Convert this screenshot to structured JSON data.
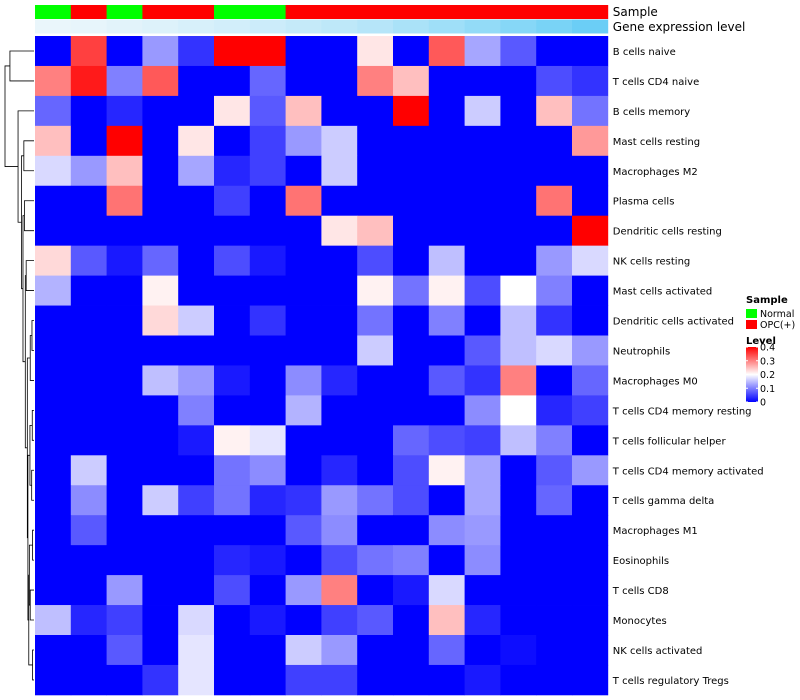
{
  "chart_data": {
    "type": "heatmap",
    "annotation_rows": [
      {
        "label": "Sample"
      },
      {
        "label": "Gene expression level"
      }
    ],
    "row_labels": [
      "B cells naive",
      "T cells CD4 naive",
      "B cells memory",
      "Mast cells resting",
      "Macrophages M2",
      "Plasma cells",
      "Dendritic cells resting",
      "NK cells resting",
      "Mast cells activated",
      "Dendritic cells activated",
      "Neutrophils",
      "Macrophages M0",
      "T cells CD4 memory resting",
      "T cells follicular helper",
      "T cells CD4 memory activated",
      "T cells gamma delta",
      "Macrophages M1",
      "Eosinophils",
      "T cells CD8",
      "Monocytes",
      "NK cells activated",
      "T cells regulatory  Tregs"
    ],
    "sample_groups": [
      "Normal",
      "OPC(+)",
      "Normal",
      "OPC(+)",
      "OPC(+)",
      "Normal",
      "Normal",
      "OPC(+)",
      "OPC(+)",
      "OPC(+)",
      "OPC(+)",
      "OPC(+)",
      "OPC(+)",
      "OPC(+)",
      "OPC(+)",
      "OPC(+)"
    ],
    "expression_level_annotation": [
      0.05,
      0.07,
      0.1,
      0.13,
      0.17,
      0.2,
      0.24,
      0.28,
      0.33,
      0.38,
      0.45,
      0.52,
      0.6,
      0.68,
      0.76,
      0.85
    ],
    "values": [
      [
        0.0,
        0.35,
        0.0,
        0.12,
        0.04,
        0.4,
        0.4,
        0.0,
        0.0,
        0.22,
        0.0,
        0.33,
        0.13,
        0.07,
        0.0,
        0.0
      ],
      [
        0.3,
        0.38,
        0.1,
        0.33,
        0.0,
        0.0,
        0.08,
        0.0,
        0.0,
        0.3,
        0.25,
        0.0,
        0.0,
        0.0,
        0.06,
        0.04
      ],
      [
        0.08,
        0.0,
        0.03,
        0.0,
        0.0,
        0.22,
        0.07,
        0.25,
        0.0,
        0.0,
        0.4,
        0.0,
        0.16,
        0.0,
        0.25,
        0.09
      ],
      [
        0.25,
        0.0,
        0.4,
        0.0,
        0.22,
        0.0,
        0.05,
        0.12,
        0.16,
        0.0,
        0.0,
        0.0,
        0.0,
        0.0,
        0.0,
        0.28
      ],
      [
        0.17,
        0.12,
        0.25,
        0.0,
        0.13,
        0.03,
        0.05,
        0.0,
        0.16,
        0.0,
        0.0,
        0.0,
        0.0,
        0.0,
        0.0,
        0.0
      ],
      [
        0.0,
        0.0,
        0.31,
        0.0,
        0.0,
        0.05,
        0.0,
        0.31,
        0.0,
        0.0,
        0.0,
        0.0,
        0.0,
        0.0,
        0.31,
        0.0
      ],
      [
        0.0,
        0.0,
        0.0,
        0.0,
        0.0,
        0.0,
        0.0,
        0.0,
        0.22,
        0.25,
        0.0,
        0.0,
        0.0,
        0.0,
        0.0,
        0.4
      ],
      [
        0.23,
        0.07,
        0.02,
        0.08,
        0.0,
        0.06,
        0.02,
        0.0,
        0.0,
        0.06,
        0.0,
        0.15,
        0.0,
        0.0,
        0.12,
        0.17
      ],
      [
        0.14,
        0.0,
        0.0,
        0.21,
        0.0,
        0.0,
        0.0,
        0.0,
        0.0,
        0.21,
        0.09,
        0.21,
        0.06,
        0.2,
        0.1,
        0.0
      ],
      [
        0.0,
        0.0,
        0.0,
        0.23,
        0.16,
        0.0,
        0.04,
        0.0,
        0.0,
        0.09,
        0.0,
        0.1,
        0.0,
        0.15,
        0.04,
        0.0
      ],
      [
        0.0,
        0.0,
        0.0,
        0.0,
        0.0,
        0.0,
        0.0,
        0.0,
        0.0,
        0.16,
        0.0,
        0.0,
        0.07,
        0.15,
        0.17,
        0.12
      ],
      [
        0.0,
        0.0,
        0.0,
        0.15,
        0.12,
        0.02,
        0.0,
        0.11,
        0.03,
        0.0,
        0.0,
        0.07,
        0.04,
        0.3,
        0.0,
        0.08
      ],
      [
        0.0,
        0.0,
        0.0,
        0.0,
        0.1,
        0.0,
        0.0,
        0.14,
        0.0,
        0.0,
        0.0,
        0.0,
        0.11,
        0.2,
        0.03,
        0.05
      ],
      [
        0.0,
        0.0,
        0.0,
        0.0,
        0.02,
        0.21,
        0.18,
        0.0,
        0.0,
        0.0,
        0.08,
        0.06,
        0.05,
        0.15,
        0.1,
        0.0
      ],
      [
        0.0,
        0.16,
        0.0,
        0.0,
        0.0,
        0.09,
        0.11,
        0.0,
        0.03,
        0.0,
        0.06,
        0.21,
        0.13,
        0.0,
        0.07,
        0.12
      ],
      [
        0.0,
        0.11,
        0.0,
        0.16,
        0.05,
        0.09,
        0.03,
        0.04,
        0.12,
        0.09,
        0.06,
        0.0,
        0.13,
        0.0,
        0.08,
        0.0
      ],
      [
        0.0,
        0.07,
        0.0,
        0.0,
        0.0,
        0.0,
        0.0,
        0.07,
        0.11,
        0.0,
        0.0,
        0.11,
        0.12,
        0.0,
        0.0,
        0.0
      ],
      [
        0.0,
        0.0,
        0.0,
        0.0,
        0.0,
        0.03,
        0.02,
        0.0,
        0.06,
        0.09,
        0.1,
        0.0,
        0.11,
        0.0,
        0.0,
        0.0
      ],
      [
        0.0,
        0.0,
        0.12,
        0.0,
        0.0,
        0.06,
        0.0,
        0.12,
        0.3,
        0.0,
        0.02,
        0.17,
        0.0,
        0.0,
        0.0,
        0.0
      ],
      [
        0.15,
        0.03,
        0.05,
        0.0,
        0.17,
        0.0,
        0.02,
        0.0,
        0.05,
        0.07,
        0.0,
        0.25,
        0.03,
        0.0,
        0.0,
        0.0
      ],
      [
        0.0,
        0.0,
        0.07,
        0.0,
        0.18,
        0.0,
        0.0,
        0.16,
        0.12,
        0.0,
        0.0,
        0.08,
        0.0,
        0.01,
        0.0,
        0.0
      ],
      [
        0.0,
        0.0,
        0.0,
        0.04,
        0.18,
        0.0,
        0.0,
        0.05,
        0.05,
        0.0,
        0.0,
        0.0,
        0.02,
        0.0,
        0.0,
        0.0
      ]
    ],
    "value_range": [
      0,
      0.4
    ],
    "color_scale": [
      "#0000ff",
      "#ffffff",
      "#ff0000"
    ],
    "group_colors": {
      "Normal": "#00ff00",
      "OPC(+)": "#ff0000"
    },
    "level_annotation_colors": [
      "#f2f8fb",
      "#53c7f5"
    ],
    "legend": {
      "sample_title": "Sample",
      "sample_items": [
        "Normal",
        "OPC(+)"
      ],
      "level_title": "Level",
      "level_ticks": [
        "0.4",
        "0.3",
        "0.2",
        "0.1",
        "0"
      ]
    },
    "row_dendrogram": true,
    "title": "",
    "xlabel": "",
    "ylabel": ""
  }
}
